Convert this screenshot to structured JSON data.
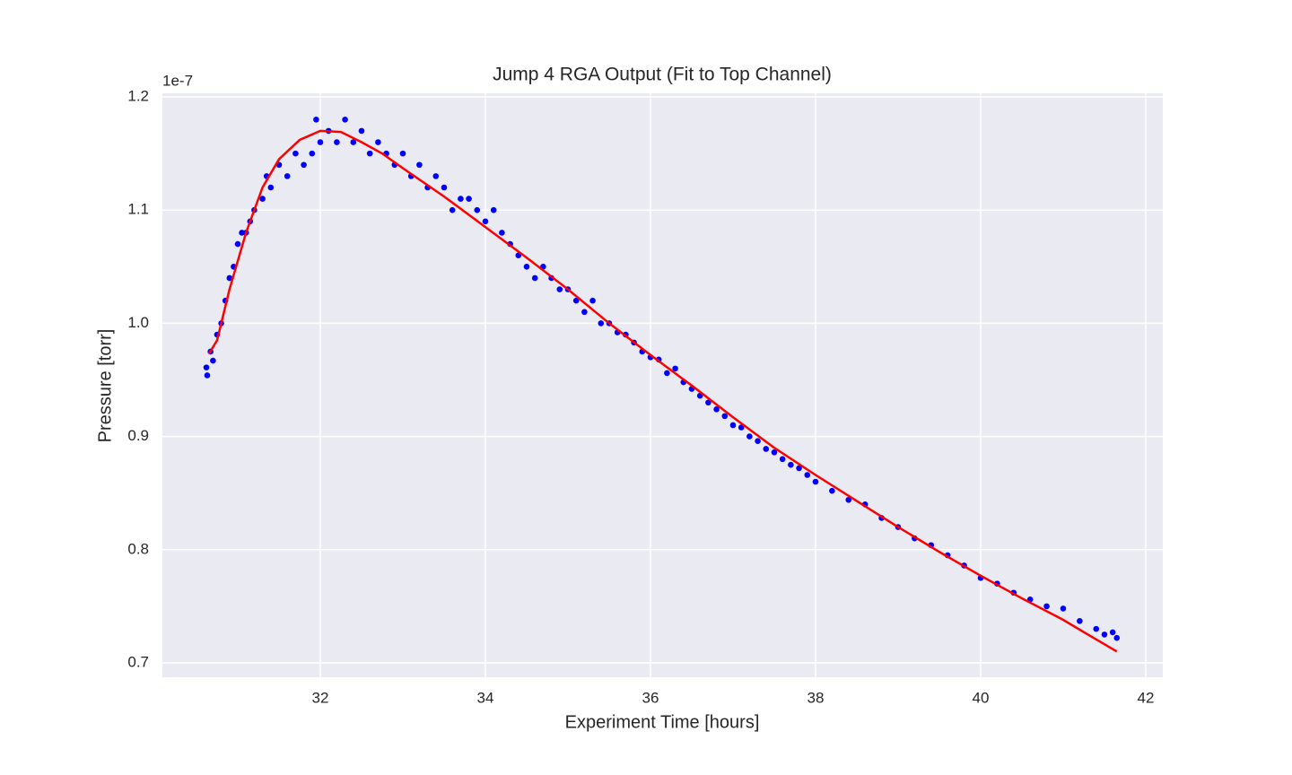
{
  "chart_data": {
    "type": "scatter",
    "title": "Jump 4 RGA Output (Fit to Top Channel)",
    "x_label": "Experiment Time [hours]",
    "y_label": "Pressure [torr]",
    "y_offset_label": "1e-7",
    "xlim": [
      30.087,
      42.207
    ],
    "ylim": [
      0.6873,
      1.2032
    ],
    "xticks": [
      32,
      34,
      36,
      38,
      40,
      42
    ],
    "yticks": [
      0.7,
      0.8,
      0.9,
      {
        "value": 1,
        "label": "1.0"
      },
      1.1,
      1.2
    ],
    "grid": true,
    "series": [
      {
        "type": "scatter",
        "color": "#0000ff",
        "x": [
          30.62,
          30.63,
          30.67,
          30.7,
          30.75,
          30.8,
          30.85,
          30.9,
          30.95,
          31.0,
          31.05,
          31.1,
          31.15,
          31.2,
          31.3,
          31.35,
          31.4,
          31.5,
          31.6,
          31.7,
          31.8,
          31.9,
          31.95,
          32.0,
          32.1,
          32.2,
          32.3,
          32.4,
          32.5,
          32.6,
          32.7,
          32.8,
          32.9,
          33.0,
          33.1,
          33.2,
          33.3,
          33.4,
          33.5,
          33.6,
          33.7,
          33.8,
          33.9,
          34.0,
          34.1,
          34.2,
          34.3,
          34.4,
          34.5,
          34.6,
          34.7,
          34.8,
          34.9,
          35.0,
          35.1,
          35.2,
          35.3,
          35.4,
          35.5,
          35.6,
          35.7,
          35.8,
          35.9,
          36.0,
          36.1,
          36.2,
          36.3,
          36.4,
          36.5,
          36.6,
          36.7,
          36.8,
          36.9,
          37.0,
          37.1,
          37.2,
          37.3,
          37.4,
          37.5,
          37.6,
          37.7,
          37.8,
          37.9,
          38.0,
          38.2,
          38.4,
          38.6,
          38.8,
          39.0,
          39.2,
          39.4,
          39.6,
          39.8,
          40.0,
          40.2,
          40.4,
          40.6,
          40.8,
          41.0,
          41.2,
          41.4,
          41.5,
          41.6,
          41.65
        ],
        "values": [
          0.961,
          0.954,
          0.975,
          0.967,
          0.99,
          1.0,
          1.02,
          1.04,
          1.05,
          1.07,
          1.08,
          1.08,
          1.09,
          1.1,
          1.11,
          1.13,
          1.12,
          1.14,
          1.13,
          1.15,
          1.14,
          1.15,
          1.18,
          1.16,
          1.17,
          1.16,
          1.18,
          1.16,
          1.17,
          1.15,
          1.16,
          1.15,
          1.14,
          1.15,
          1.13,
          1.14,
          1.12,
          1.13,
          1.12,
          1.1,
          1.11,
          1.11,
          1.1,
          1.09,
          1.1,
          1.08,
          1.07,
          1.06,
          1.05,
          1.04,
          1.05,
          1.04,
          1.03,
          1.03,
          1.02,
          1.01,
          1.02,
          1.0,
          1.0,
          0.992,
          0.99,
          0.983,
          0.975,
          0.97,
          0.968,
          0.956,
          0.96,
          0.948,
          0.942,
          0.936,
          0.93,
          0.924,
          0.918,
          0.91,
          0.908,
          0.9,
          0.896,
          0.889,
          0.886,
          0.88,
          0.875,
          0.872,
          0.866,
          0.86,
          0.852,
          0.844,
          0.84,
          0.828,
          0.82,
          0.81,
          0.804,
          0.795,
          0.786,
          0.775,
          0.77,
          0.762,
          0.756,
          0.75,
          0.748,
          0.737,
          0.73,
          0.725,
          0.727,
          0.722
        ]
      },
      {
        "type": "line",
        "color": "#ff0000",
        "x": [
          30.65,
          30.75,
          30.9,
          31.1,
          31.3,
          31.5,
          31.75,
          32.0,
          32.25,
          32.5,
          32.75,
          33.0,
          33.5,
          34.0,
          34.5,
          35.0,
          35.5,
          36.0,
          36.5,
          37.0,
          37.5,
          38.0,
          38.5,
          39.0,
          39.5,
          40.0,
          40.5,
          41.0,
          41.3,
          41.65
        ],
        "values": [
          0.973,
          0.985,
          1.03,
          1.08,
          1.12,
          1.145,
          1.162,
          1.17,
          1.169,
          1.16,
          1.15,
          1.137,
          1.112,
          1.085,
          1.058,
          1.03,
          1.0,
          0.972,
          0.945,
          0.917,
          0.89,
          0.866,
          0.843,
          0.82,
          0.798,
          0.777,
          0.757,
          0.738,
          0.725,
          0.71
        ]
      }
    ]
  }
}
